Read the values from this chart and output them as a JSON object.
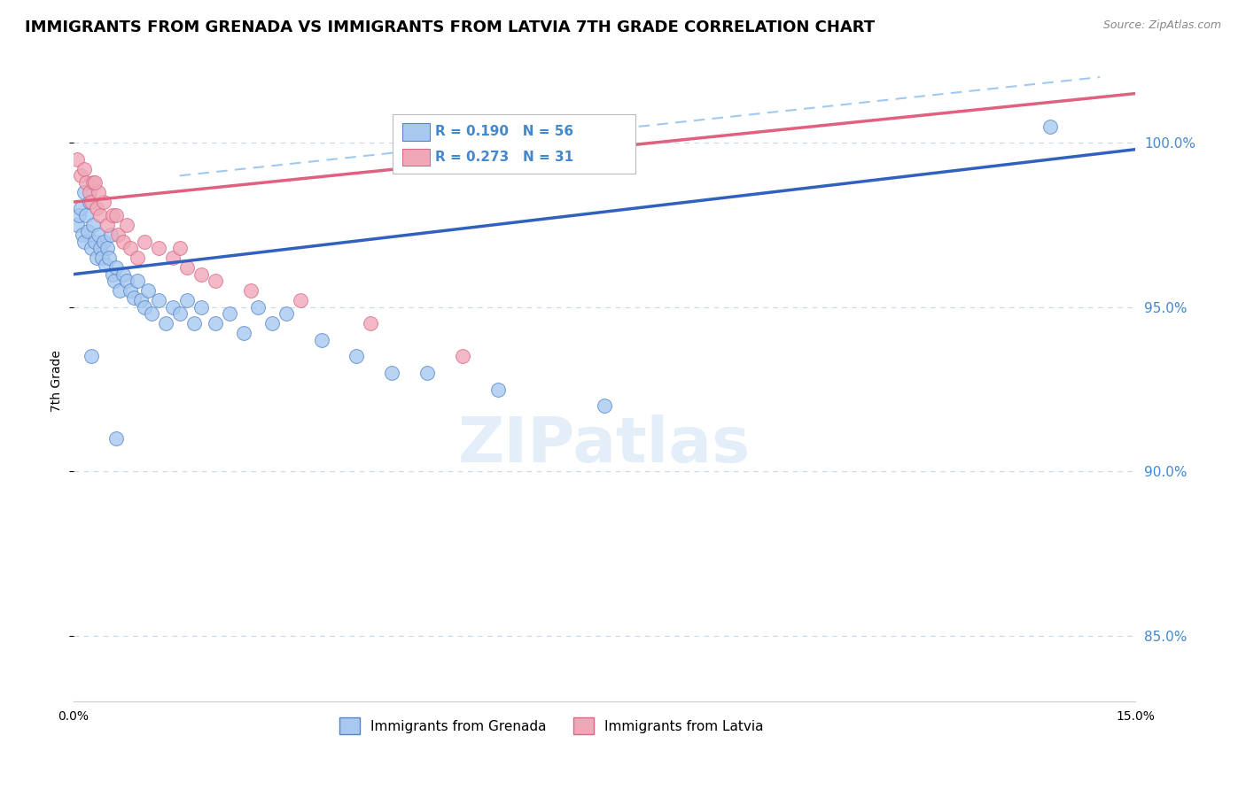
{
  "title": "IMMIGRANTS FROM GRENADA VS IMMIGRANTS FROM LATVIA 7TH GRADE CORRELATION CHART",
  "source": "Source: ZipAtlas.com",
  "ylabel": "7th Grade",
  "xlim": [
    0.0,
    15.0
  ],
  "ylim": [
    83.0,
    102.5
  ],
  "x_ticks": [
    0.0,
    3.0,
    6.0,
    9.0,
    12.0,
    15.0
  ],
  "x_tick_labels": [
    "0.0%",
    "",
    "",
    "",
    "",
    "15.0%"
  ],
  "y_ticks": [
    85.0,
    90.0,
    95.0,
    100.0
  ],
  "y_tick_labels": [
    "85.0%",
    "90.0%",
    "95.0%",
    "100.0%"
  ],
  "legend_label1": "Immigrants from Grenada",
  "legend_label2": "Immigrants from Latvia",
  "r1": 0.19,
  "n1": 56,
  "r2": 0.273,
  "n2": 31,
  "color_grenada": "#a8c8f0",
  "color_latvia": "#f0a8b8",
  "color_grenada_border": "#5585c8",
  "color_latvia_border": "#d86888",
  "color_grenada_line": "#3060c0",
  "color_latvia_line": "#e06080",
  "color_ci": "#a0c8f0",
  "grenada_x": [
    0.05,
    0.08,
    0.1,
    0.12,
    0.15,
    0.15,
    0.18,
    0.2,
    0.22,
    0.25,
    0.28,
    0.3,
    0.32,
    0.35,
    0.38,
    0.4,
    0.42,
    0.45,
    0.48,
    0.5,
    0.52,
    0.55,
    0.58,
    0.6,
    0.65,
    0.7,
    0.75,
    0.8,
    0.85,
    0.9,
    0.95,
    1.0,
    1.05,
    1.1,
    1.2,
    1.3,
    1.4,
    1.5,
    1.6,
    1.7,
    1.8,
    2.0,
    2.2,
    2.4,
    2.6,
    2.8,
    3.0,
    3.5,
    4.0,
    4.5,
    5.0,
    6.0,
    7.5,
    0.25,
    0.6,
    13.8
  ],
  "grenada_y": [
    97.5,
    97.8,
    98.0,
    97.2,
    98.5,
    97.0,
    97.8,
    97.3,
    98.2,
    96.8,
    97.5,
    97.0,
    96.5,
    97.2,
    96.8,
    96.5,
    97.0,
    96.3,
    96.8,
    96.5,
    97.2,
    96.0,
    95.8,
    96.2,
    95.5,
    96.0,
    95.8,
    95.5,
    95.3,
    95.8,
    95.2,
    95.0,
    95.5,
    94.8,
    95.2,
    94.5,
    95.0,
    94.8,
    95.2,
    94.5,
    95.0,
    94.5,
    94.8,
    94.2,
    95.0,
    94.5,
    94.8,
    94.0,
    93.5,
    93.0,
    93.0,
    92.5,
    92.0,
    93.5,
    91.0,
    100.5
  ],
  "latvia_x": [
    0.05,
    0.1,
    0.15,
    0.18,
    0.22,
    0.25,
    0.28,
    0.32,
    0.38,
    0.42,
    0.48,
    0.55,
    0.62,
    0.7,
    0.8,
    0.9,
    1.0,
    1.2,
    1.4,
    1.6,
    1.8,
    2.0,
    2.5,
    3.2,
    4.2,
    0.35,
    0.75,
    1.5,
    0.6,
    0.3,
    5.5
  ],
  "latvia_y": [
    99.5,
    99.0,
    99.2,
    98.8,
    98.5,
    98.2,
    98.8,
    98.0,
    97.8,
    98.2,
    97.5,
    97.8,
    97.2,
    97.0,
    96.8,
    96.5,
    97.0,
    96.8,
    96.5,
    96.2,
    96.0,
    95.8,
    95.5,
    95.2,
    94.5,
    98.5,
    97.5,
    96.8,
    97.8,
    98.8,
    93.5
  ],
  "grenada_line": {
    "x0": 0.0,
    "x1": 15.0,
    "y0": 96.0,
    "y1": 99.8
  },
  "latvia_line": {
    "x0": 0.0,
    "x1": 15.0,
    "y0": 98.2,
    "y1": 101.5
  },
  "ci_line": {
    "x0": 1.5,
    "x1": 14.5,
    "y0": 99.0,
    "y1": 102.0
  },
  "background_color": "#ffffff",
  "grid_color": "#c8d8e8",
  "right_axis_color": "#4488cc",
  "title_fontsize": 13,
  "axis_label_fontsize": 10
}
